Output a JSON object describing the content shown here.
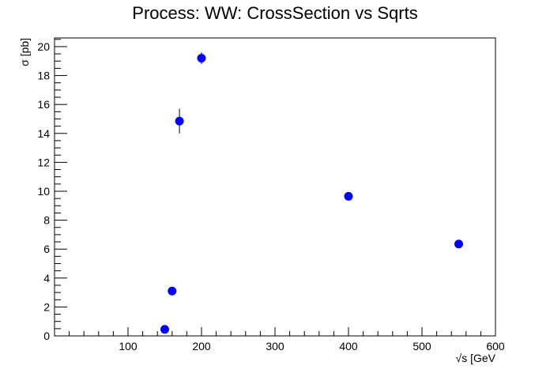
{
  "chart_data": {
    "type": "scatter",
    "title": "Process: WW: CrossSection vs Sqrts",
    "xlabel": "√s [GeV",
    "ylabel": "σ [pb]",
    "xlim": [
      0,
      600
    ],
    "ylim": [
      0,
      20.6
    ],
    "x_ticks": [
      100,
      200,
      300,
      400,
      500,
      600
    ],
    "y_ticks": [
      0,
      2,
      4,
      6,
      8,
      10,
      12,
      14,
      16,
      18,
      20
    ],
    "grid": false,
    "legend": "none",
    "marker_color": "#0000ff",
    "series": [
      {
        "x": [
          150,
          160,
          170,
          200,
          400,
          550
        ],
        "y": [
          0.45,
          3.1,
          14.85,
          19.2,
          9.65,
          6.35
        ],
        "yerr": [
          0.05,
          0.1,
          0.85,
          0.4,
          0.15,
          0.1
        ]
      }
    ]
  }
}
